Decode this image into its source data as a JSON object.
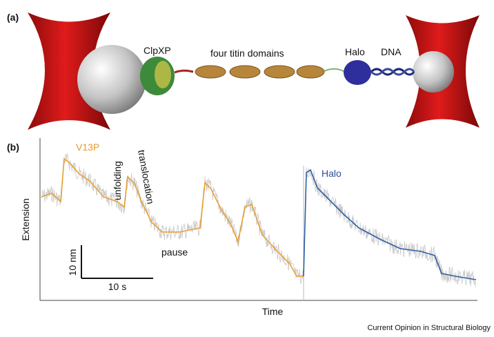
{
  "panel_a": {
    "label": "(a)",
    "labels": {
      "clpxp": "ClpXP",
      "titin": "four titin domains",
      "halo": "Halo",
      "dna": "DNA"
    }
  },
  "panel_b": {
    "label": "(b)",
    "annotations": {
      "v13p": "V13P",
      "unfolding": "unfolding",
      "translocation": "translocation",
      "pause": "pause",
      "halo": "Halo"
    },
    "y_axis_label": "Extension",
    "x_axis_label": "Time",
    "scale_bar": {
      "vertical": "10 nm",
      "horizontal": "10 s"
    }
  },
  "credit": "Current Opinion in Structural Biology"
}
